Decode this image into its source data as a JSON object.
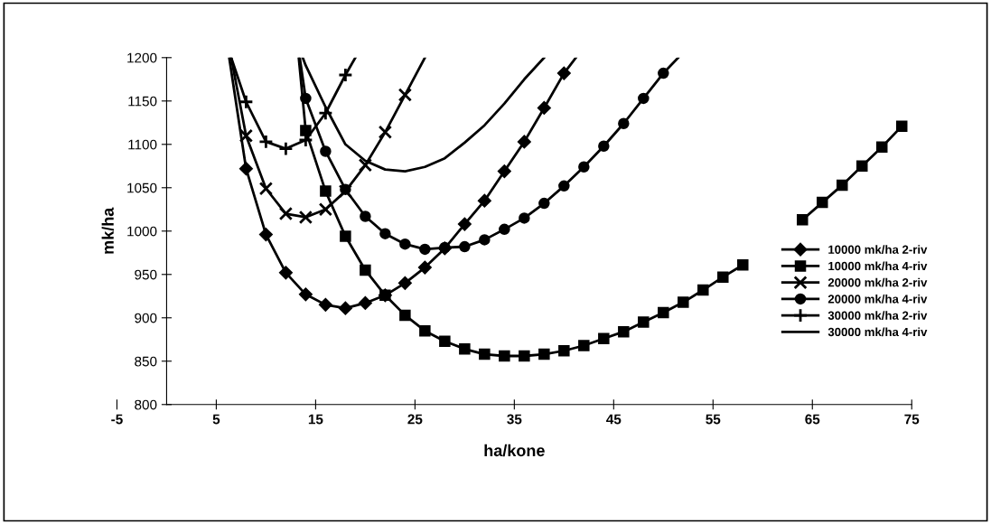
{
  "chart_data": {
    "type": "line",
    "xlabel": "ha/kone",
    "ylabel": "mk/ha",
    "xlim": [
      -5,
      75
    ],
    "ylim": [
      800,
      1200
    ],
    "xticks": [
      -5,
      5,
      15,
      25,
      35,
      45,
      55,
      65,
      75
    ],
    "yticks": [
      800,
      850,
      900,
      950,
      1000,
      1050,
      1100,
      1150,
      1200
    ],
    "grid": false,
    "legend": "right",
    "line_style": "solid",
    "series": [
      {
        "name": "10000 mk/ha 2-riv",
        "color": "#000000",
        "marker": "diamond",
        "x": [
          6.3,
          8,
          10,
          12,
          14,
          16,
          18,
          20,
          22,
          24,
          26,
          28,
          30,
          32,
          34,
          36,
          38,
          40,
          41.2
        ],
        "values": [
          1200,
          1072,
          996,
          952,
          927,
          915,
          911,
          917,
          926,
          940,
          958,
          980,
          1008,
          1035,
          1069,
          1103,
          1142,
          1182,
          1200
        ]
      },
      {
        "name": "10000 mk/ha 4-riv",
        "color": "#000000",
        "marker": "square",
        "x": [
          13.3,
          14,
          16,
          18,
          20,
          22,
          24,
          26,
          28,
          30,
          32,
          34,
          36,
          38,
          40,
          42,
          44,
          46,
          48,
          50,
          52,
          54,
          56,
          58,
          60,
          62,
          64,
          66,
          68,
          70,
          72,
          74
        ],
        "values": [
          1200,
          1116,
          1046,
          994,
          955,
          926,
          903,
          885,
          873,
          864,
          858,
          856,
          856,
          858,
          862,
          868,
          876,
          884,
          895,
          906,
          918,
          932,
          947,
          961,
          null,
          null,
          1013,
          1033,
          1053,
          1075,
          1097,
          1121
        ]
      },
      {
        "name": "20000 mk/ha 2-riv",
        "color": "#000000",
        "marker": "cross",
        "x": [
          6.5,
          8,
          10,
          12,
          14,
          16,
          18,
          20,
          22,
          24,
          26
        ],
        "values": [
          1200,
          1110,
          1049,
          1020,
          1016,
          1025,
          1046,
          1076,
          1114,
          1157,
          1200
        ]
      },
      {
        "name": "20000 mk/ha 4-riv",
        "color": "#000000",
        "marker": "circle",
        "x": [
          13.4,
          14,
          16,
          18,
          20,
          22,
          24,
          26,
          28,
          30,
          32,
          34,
          36,
          38,
          40,
          42,
          44,
          46,
          48,
          50,
          51.5
        ],
        "values": [
          1200,
          1153,
          1092,
          1048,
          1017,
          997,
          985,
          979,
          981,
          982,
          990,
          1002,
          1015,
          1032,
          1052,
          1074,
          1098,
          1124,
          1153,
          1182,
          1200
        ]
      },
      {
        "name": "30000 mk/ha 2-riv",
        "color": "#000000",
        "marker": "plus",
        "x": [
          6.5,
          8,
          10,
          12,
          14,
          16,
          18,
          19
        ],
        "values": [
          1200,
          1149,
          1103,
          1095,
          1105,
          1136,
          1180,
          1200
        ]
      },
      {
        "name": "30000 mk/ha 4-riv",
        "color": "#000000",
        "marker": "none",
        "x": [
          13.7,
          14,
          16,
          18,
          20,
          22,
          24,
          26,
          28,
          30,
          32,
          34,
          36,
          38
        ],
        "values": [
          1200,
          1191,
          1143,
          1100,
          1081,
          1071,
          1069,
          1074,
          1084,
          1102,
          1122,
          1147,
          1175,
          1200
        ]
      }
    ]
  }
}
